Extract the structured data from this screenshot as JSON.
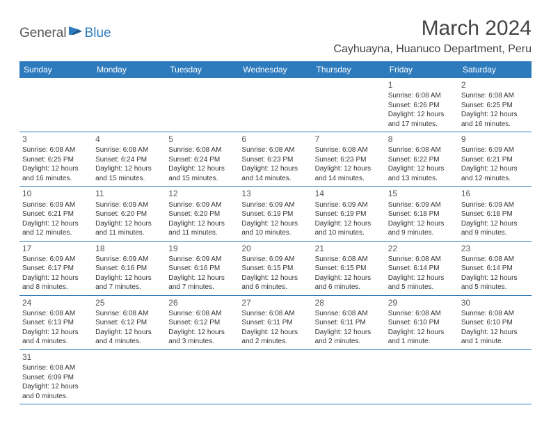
{
  "logo": {
    "part1": "General",
    "part2": "Blue"
  },
  "title": "March 2024",
  "location": "Cayhuayna, Huanuco Department, Peru",
  "colors": {
    "header_bg": "#2d7bbd",
    "header_text": "#ffffff",
    "border": "#2d7bbd",
    "text": "#333333",
    "logo_gray": "#555555",
    "logo_blue": "#2d7bbd"
  },
  "weekdays": [
    "Sunday",
    "Monday",
    "Tuesday",
    "Wednesday",
    "Thursday",
    "Friday",
    "Saturday"
  ],
  "weeks": [
    [
      null,
      null,
      null,
      null,
      null,
      {
        "d": "1",
        "sr": "6:08 AM",
        "ss": "6:26 PM",
        "dl": "12 hours and 17 minutes."
      },
      {
        "d": "2",
        "sr": "6:08 AM",
        "ss": "6:25 PM",
        "dl": "12 hours and 16 minutes."
      }
    ],
    [
      {
        "d": "3",
        "sr": "6:08 AM",
        "ss": "6:25 PM",
        "dl": "12 hours and 16 minutes."
      },
      {
        "d": "4",
        "sr": "6:08 AM",
        "ss": "6:24 PM",
        "dl": "12 hours and 15 minutes."
      },
      {
        "d": "5",
        "sr": "6:08 AM",
        "ss": "6:24 PM",
        "dl": "12 hours and 15 minutes."
      },
      {
        "d": "6",
        "sr": "6:08 AM",
        "ss": "6:23 PM",
        "dl": "12 hours and 14 minutes."
      },
      {
        "d": "7",
        "sr": "6:08 AM",
        "ss": "6:23 PM",
        "dl": "12 hours and 14 minutes."
      },
      {
        "d": "8",
        "sr": "6:08 AM",
        "ss": "6:22 PM",
        "dl": "12 hours and 13 minutes."
      },
      {
        "d": "9",
        "sr": "6:09 AM",
        "ss": "6:21 PM",
        "dl": "12 hours and 12 minutes."
      }
    ],
    [
      {
        "d": "10",
        "sr": "6:09 AM",
        "ss": "6:21 PM",
        "dl": "12 hours and 12 minutes."
      },
      {
        "d": "11",
        "sr": "6:09 AM",
        "ss": "6:20 PM",
        "dl": "12 hours and 11 minutes."
      },
      {
        "d": "12",
        "sr": "6:09 AM",
        "ss": "6:20 PM",
        "dl": "12 hours and 11 minutes."
      },
      {
        "d": "13",
        "sr": "6:09 AM",
        "ss": "6:19 PM",
        "dl": "12 hours and 10 minutes."
      },
      {
        "d": "14",
        "sr": "6:09 AM",
        "ss": "6:19 PM",
        "dl": "12 hours and 10 minutes."
      },
      {
        "d": "15",
        "sr": "6:09 AM",
        "ss": "6:18 PM",
        "dl": "12 hours and 9 minutes."
      },
      {
        "d": "16",
        "sr": "6:09 AM",
        "ss": "6:18 PM",
        "dl": "12 hours and 9 minutes."
      }
    ],
    [
      {
        "d": "17",
        "sr": "6:09 AM",
        "ss": "6:17 PM",
        "dl": "12 hours and 8 minutes."
      },
      {
        "d": "18",
        "sr": "6:09 AM",
        "ss": "6:16 PM",
        "dl": "12 hours and 7 minutes."
      },
      {
        "d": "19",
        "sr": "6:09 AM",
        "ss": "6:16 PM",
        "dl": "12 hours and 7 minutes."
      },
      {
        "d": "20",
        "sr": "6:09 AM",
        "ss": "6:15 PM",
        "dl": "12 hours and 6 minutes."
      },
      {
        "d": "21",
        "sr": "6:08 AM",
        "ss": "6:15 PM",
        "dl": "12 hours and 6 minutes."
      },
      {
        "d": "22",
        "sr": "6:08 AM",
        "ss": "6:14 PM",
        "dl": "12 hours and 5 minutes."
      },
      {
        "d": "23",
        "sr": "6:08 AM",
        "ss": "6:14 PM",
        "dl": "12 hours and 5 minutes."
      }
    ],
    [
      {
        "d": "24",
        "sr": "6:08 AM",
        "ss": "6:13 PM",
        "dl": "12 hours and 4 minutes."
      },
      {
        "d": "25",
        "sr": "6:08 AM",
        "ss": "6:12 PM",
        "dl": "12 hours and 4 minutes."
      },
      {
        "d": "26",
        "sr": "6:08 AM",
        "ss": "6:12 PM",
        "dl": "12 hours and 3 minutes."
      },
      {
        "d": "27",
        "sr": "6:08 AM",
        "ss": "6:11 PM",
        "dl": "12 hours and 2 minutes."
      },
      {
        "d": "28",
        "sr": "6:08 AM",
        "ss": "6:11 PM",
        "dl": "12 hours and 2 minutes."
      },
      {
        "d": "29",
        "sr": "6:08 AM",
        "ss": "6:10 PM",
        "dl": "12 hours and 1 minute."
      },
      {
        "d": "30",
        "sr": "6:08 AM",
        "ss": "6:10 PM",
        "dl": "12 hours and 1 minute."
      }
    ],
    [
      {
        "d": "31",
        "sr": "6:08 AM",
        "ss": "6:09 PM",
        "dl": "12 hours and 0 minutes."
      },
      null,
      null,
      null,
      null,
      null,
      null
    ]
  ],
  "labels": {
    "sunrise": "Sunrise: ",
    "sunset": "Sunset: ",
    "daylight": "Daylight: "
  }
}
